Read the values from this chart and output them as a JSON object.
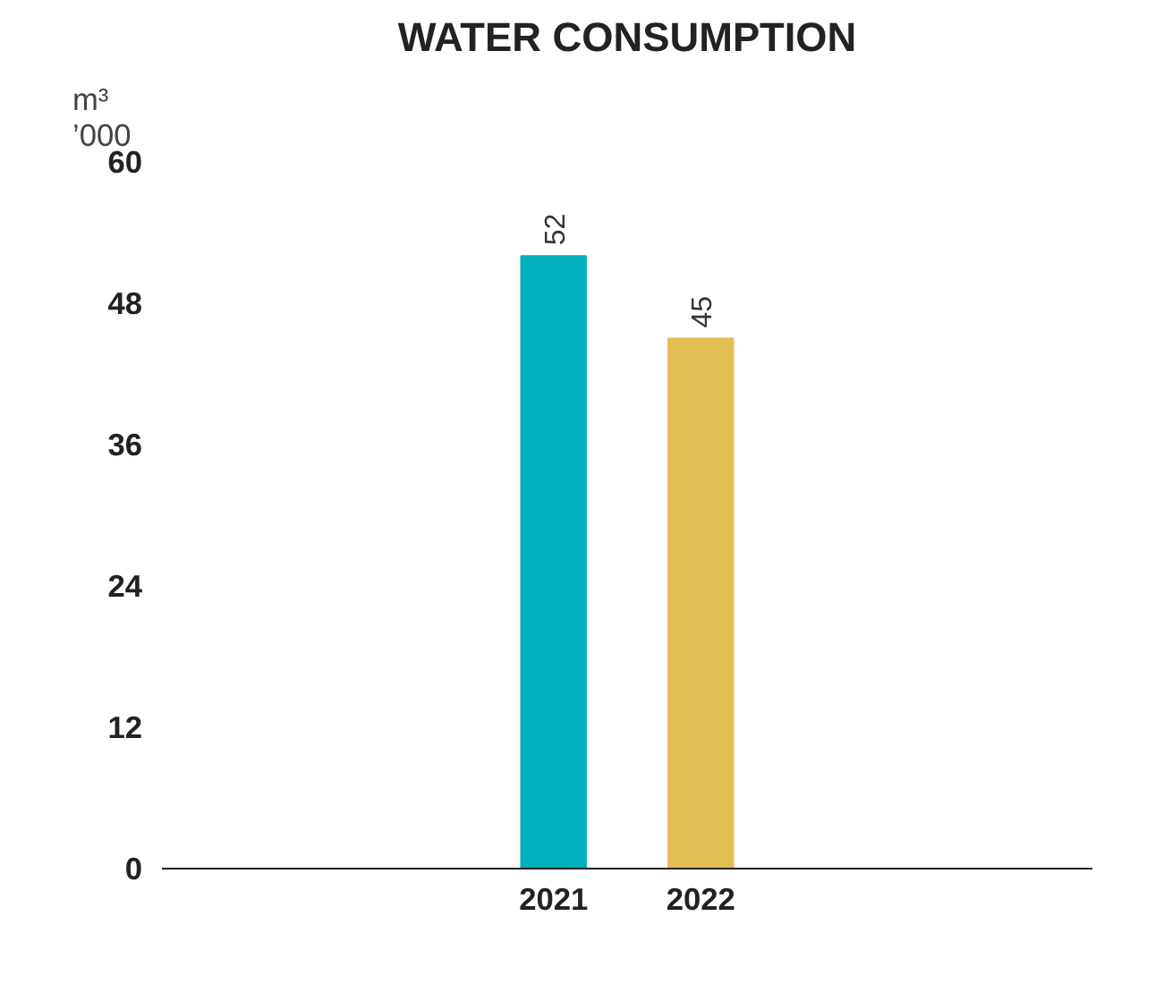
{
  "chart_data": {
    "type": "bar",
    "title": "WATER CONSUMPTION",
    "ylabel": "m³\n’000",
    "categories": [
      "2021",
      "2022"
    ],
    "values": [
      52,
      45
    ],
    "colors": [
      "#00b0bb",
      "#e2bd52"
    ],
    "ylim": [
      0,
      60
    ],
    "yticks": [
      0,
      12,
      24,
      36,
      48,
      60
    ],
    "grid": false,
    "data_labels": true
  }
}
